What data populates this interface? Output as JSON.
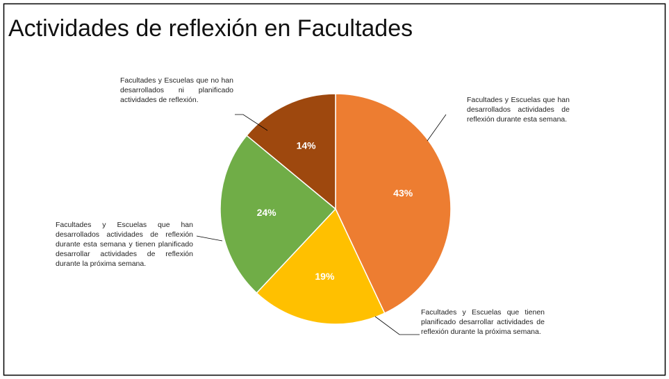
{
  "chart_data": {
    "type": "pie",
    "title": "Actividades de reflexión en Facultades",
    "categories": [
      "Facultades y Escuelas que han desarrollados actividades de reflexión durante esta semana.",
      "Facultades y Escuelas que tienen planificado desarrollar actividades de reflexión durante la próxima semana.",
      "Facultades y Escuelas que han desarrollados actividades de reflexión durante esta semana y tienen planificado desarrollar actividades de reflexión durante la próxima semana.",
      "Facultades y Escuelas que no han desarrollados ni planificado actividades de reflexión."
    ],
    "values": [
      43,
      19,
      24,
      14
    ],
    "value_labels": [
      "43%",
      "19%",
      "24%",
      "14%"
    ],
    "colors": [
      "#ED7D31",
      "#FFC000",
      "#70AD47",
      "#9E480E"
    ]
  }
}
